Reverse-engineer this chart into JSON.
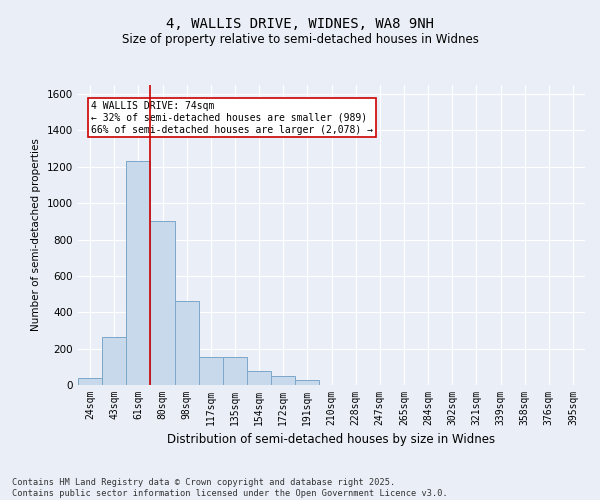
{
  "title_line1": "4, WALLIS DRIVE, WIDNES, WA8 9NH",
  "title_line2": "Size of property relative to semi-detached houses in Widnes",
  "xlabel": "Distribution of semi-detached houses by size in Widnes",
  "ylabel": "Number of semi-detached properties",
  "categories": [
    "24sqm",
    "43sqm",
    "61sqm",
    "80sqm",
    "98sqm",
    "117sqm",
    "135sqm",
    "154sqm",
    "172sqm",
    "191sqm",
    "210sqm",
    "228sqm",
    "247sqm",
    "265sqm",
    "284sqm",
    "302sqm",
    "321sqm",
    "339sqm",
    "358sqm",
    "376sqm",
    "395sqm"
  ],
  "values": [
    40,
    265,
    1230,
    900,
    460,
    155,
    155,
    75,
    50,
    30,
    0,
    0,
    0,
    0,
    0,
    0,
    0,
    0,
    0,
    0,
    0
  ],
  "bar_color": "#c9d9ec",
  "bar_edge_color": "#7ba7c9",
  "vline_color": "#cc0000",
  "annotation_text": "4 WALLIS DRIVE: 74sqm\n← 32% of semi-detached houses are smaller (989)\n66% of semi-detached houses are larger (2,078) →",
  "annotation_box_color": "#ffffff",
  "annotation_box_edge": "#cc0000",
  "ylim": [
    0,
    1650
  ],
  "yticks": [
    0,
    200,
    400,
    600,
    800,
    1000,
    1200,
    1400,
    1600
  ],
  "footer_text": "Contains HM Land Registry data © Crown copyright and database right 2025.\nContains public sector information licensed under the Open Government Licence v3.0.",
  "background_color": "#eaeff7",
  "plot_bg_color": "#eaeff7",
  "grid_color": "#ffffff",
  "title1_fontsize": 10,
  "title2_fontsize": 8.5
}
